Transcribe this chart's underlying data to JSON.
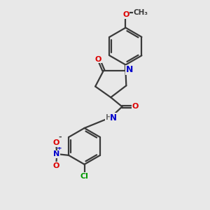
{
  "background_color": "#e8e8e8",
  "bond_color": "#3a3a3a",
  "atom_colors": {
    "O": "#dd0000",
    "N": "#0000cc",
    "Cl": "#009900",
    "C": "#3a3a3a",
    "H": "#707070"
  },
  "figsize": [
    3.0,
    3.0
  ],
  "dpi": 100
}
